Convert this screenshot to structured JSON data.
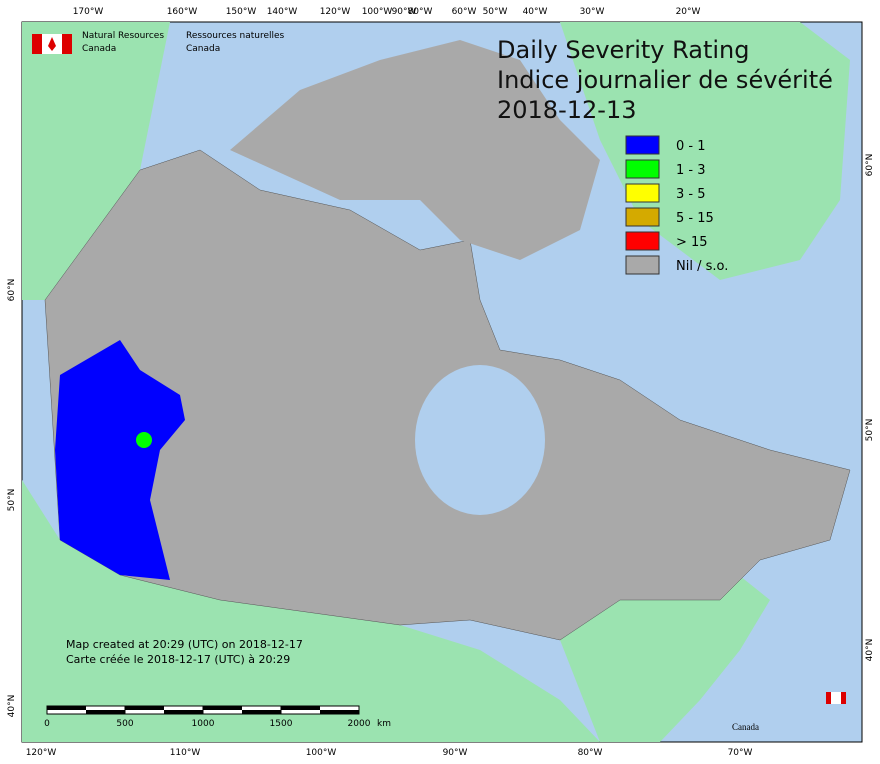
{
  "header": {
    "en": [
      "Natural Resources",
      "Canada"
    ],
    "fr": [
      "Ressources naturelles",
      "Canada"
    ]
  },
  "title": [
    "Daily Severity Rating",
    "Indice journalier de sévérité",
    "2018-12-13"
  ],
  "legend": [
    {
      "label": "0 - 1",
      "color": "#0000ff"
    },
    {
      "label": "1 - 3",
      "color": "#00ff00"
    },
    {
      "label": "3 - 5",
      "color": "#ffff00"
    },
    {
      "label": "5 - 15",
      "color": "#d4aa00"
    },
    {
      "label": "> 15",
      "color": "#ff0000"
    },
    {
      "label": "Nil / s.o.",
      "color": "#a9a9a9"
    }
  ],
  "top_labels": [
    "170°W",
    "160°W",
    "150°W",
    "140°W",
    "120°W",
    "100°W",
    "90°W",
    "80°W",
    "60°W",
    "50°W",
    "40°W",
    "30°W",
    "20°W"
  ],
  "bottom_labels": [
    "120°W",
    "110°W",
    "100°W",
    "90°W",
    "80°W",
    "70°W"
  ],
  "left_labels": [
    "60°N",
    "50°N",
    "40°N"
  ],
  "right_labels": [
    "60°N",
    "50°N",
    "40°N"
  ],
  "credits": [
    "Map created at 20:29 (UTC) on 2018-12-17",
    "Carte créée le 2018-12-17 (UTC) à 20:29"
  ],
  "scale": {
    "ticks": [
      0,
      500,
      1000,
      1500,
      2000
    ],
    "unit": "km"
  },
  "wordmark": "Canada"
}
